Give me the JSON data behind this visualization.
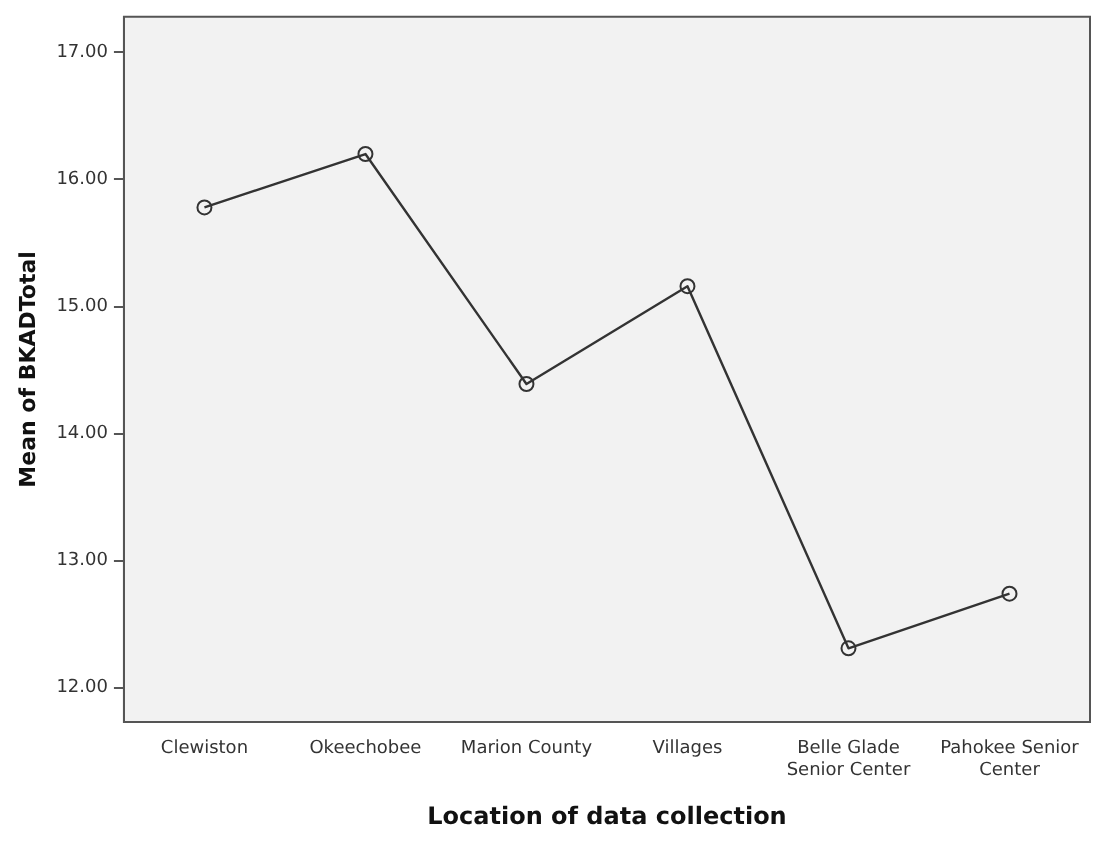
{
  "chart_data": {
    "type": "line",
    "xlabel": "Location of data collection",
    "ylabel": "Mean of BKADTotal",
    "categories": [
      "Clewiston",
      "Okeechobee",
      "Marion County",
      "Villages",
      "Belle Glade Senior Center",
      "Pahokee Senior Center"
    ],
    "series": [
      {
        "color": "#333333",
        "values": [
          15.78,
          16.2,
          14.39,
          15.16,
          12.31,
          12.74
        ]
      }
    ],
    "ylim": [
      11.73,
      17.28
    ],
    "yticks": [
      {
        "value": 12,
        "label": "12.00"
      },
      {
        "value": 13,
        "label": "13.00"
      },
      {
        "value": 14,
        "label": "14.00"
      },
      {
        "value": 15,
        "label": "15.00"
      },
      {
        "value": 16,
        "label": "16.00"
      },
      {
        "value": 17,
        "label": "17.00"
      }
    ],
    "grid": false,
    "legend": false,
    "marker": "circle",
    "line_style": "solid"
  }
}
